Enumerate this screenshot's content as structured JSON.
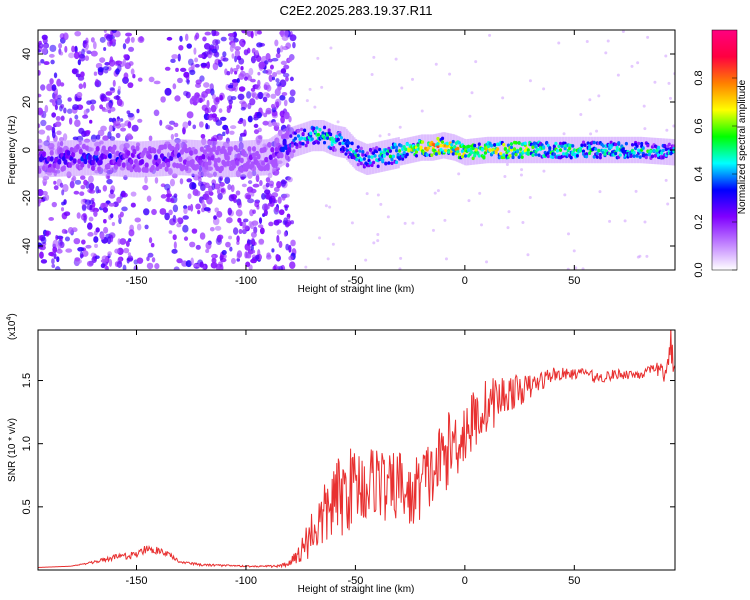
{
  "title": "C2E2.2025.283.19.37.R11",
  "chart_data": [
    {
      "type": "heatmap",
      "xlabel": "Height of straight line (km)",
      "ylabel": "Frequency (Hz)",
      "xlim": [
        -195,
        96
      ],
      "ylim": [
        -50,
        50
      ],
      "xticks": [
        -150,
        -100,
        -50,
        0,
        50
      ],
      "yticks": [
        -40,
        -20,
        0,
        20,
        40
      ],
      "colorbar": {
        "label": "Normalized spectral amplitude",
        "range": [
          0,
          1
        ],
        "ticks": [
          "0.0",
          "0.2",
          "0.4",
          "0.6",
          "0.8"
        ],
        "colors": [
          "#ffffff",
          "#c080ff",
          "#8000ff",
          "#0000ff",
          "#00ffff",
          "#00ff00",
          "#ffff00",
          "#ff8000",
          "#ff0040",
          "#ff0080"
        ]
      },
      "ridge": {
        "x": [
          -195,
          -170,
          -150,
          -130,
          -110,
          -90,
          -80,
          -70,
          -65,
          -60,
          -55,
          -50,
          -45,
          -40,
          -30,
          -20,
          -15,
          -10,
          -5,
          0,
          10,
          20,
          40,
          60,
          80,
          96
        ],
        "y": [
          -4,
          -3,
          -4,
          -3,
          -4,
          -3,
          3,
          6,
          6,
          4,
          3,
          -2,
          -4,
          -3,
          -1,
          1,
          1,
          2,
          1,
          -1,
          0,
          0,
          0,
          0,
          0,
          -1
        ],
        "amplitude": [
          0.3,
          0.35,
          0.3,
          0.3,
          0.2,
          0.25,
          0.4,
          0.5,
          0.6,
          0.5,
          0.45,
          0.5,
          0.45,
          0.5,
          0.6,
          0.7,
          0.85,
          0.8,
          0.75,
          0.7,
          0.7,
          0.75,
          0.6,
          0.55,
          0.55,
          0.5
        ]
      }
    },
    {
      "type": "line",
      "xlabel": "Height of straight line (km)",
      "ylabel": "SNR (10 * v/v)",
      "y_multiplier": "(x10",
      "y_multiplier_exp": "4",
      "y_multiplier_close": ")",
      "xlim": [
        -195,
        96
      ],
      "ylim": [
        0,
        1.9
      ],
      "xticks": [
        -150,
        -100,
        -50,
        0,
        50
      ],
      "yticks": [
        "0.5",
        "1.0",
        "1.5"
      ],
      "series": [
        {
          "color": "#e83030",
          "x": [
            -195,
            -180,
            -170,
            -165,
            -160,
            -150,
            -145,
            -140,
            -135,
            -130,
            -120,
            -100,
            -85,
            -80,
            -75,
            -70,
            -65,
            -60,
            -55,
            -50,
            -45,
            -40,
            -35,
            -30,
            -25,
            -20,
            -15,
            -10,
            -5,
            0,
            5,
            10,
            15,
            20,
            25,
            30,
            35,
            40,
            50,
            55,
            60,
            70,
            80,
            85,
            90,
            92,
            94,
            96
          ],
          "y": [
            0.02,
            0.03,
            0.06,
            0.08,
            0.1,
            0.12,
            0.18,
            0.15,
            0.12,
            0.06,
            0.04,
            0.03,
            0.03,
            0.05,
            0.15,
            0.3,
            0.4,
            0.55,
            0.6,
            0.7,
            0.65,
            0.75,
            0.6,
            0.7,
            0.55,
            0.7,
            0.75,
            0.9,
            1.0,
            1.1,
            1.2,
            1.3,
            1.35,
            1.4,
            1.42,
            1.45,
            1.5,
            1.55,
            1.55,
            1.57,
            1.52,
            1.55,
            1.55,
            1.57,
            1.6,
            1.5,
            1.8,
            1.6
          ],
          "noise": [
            0,
            0,
            0.01,
            0.02,
            0.02,
            0.03,
            0.04,
            0.03,
            0.02,
            0.01,
            0.01,
            0.005,
            0.01,
            0.03,
            0.1,
            0.2,
            0.25,
            0.3,
            0.35,
            0.3,
            0.3,
            0.3,
            0.3,
            0.28,
            0.25,
            0.3,
            0.28,
            0.3,
            0.3,
            0.28,
            0.25,
            0.22,
            0.2,
            0.15,
            0.12,
            0.1,
            0.08,
            0.06,
            0.04,
            0.03,
            0.05,
            0.04,
            0.04,
            0.05,
            0.06,
            0.08,
            0.15,
            0.15
          ]
        }
      ]
    }
  ]
}
